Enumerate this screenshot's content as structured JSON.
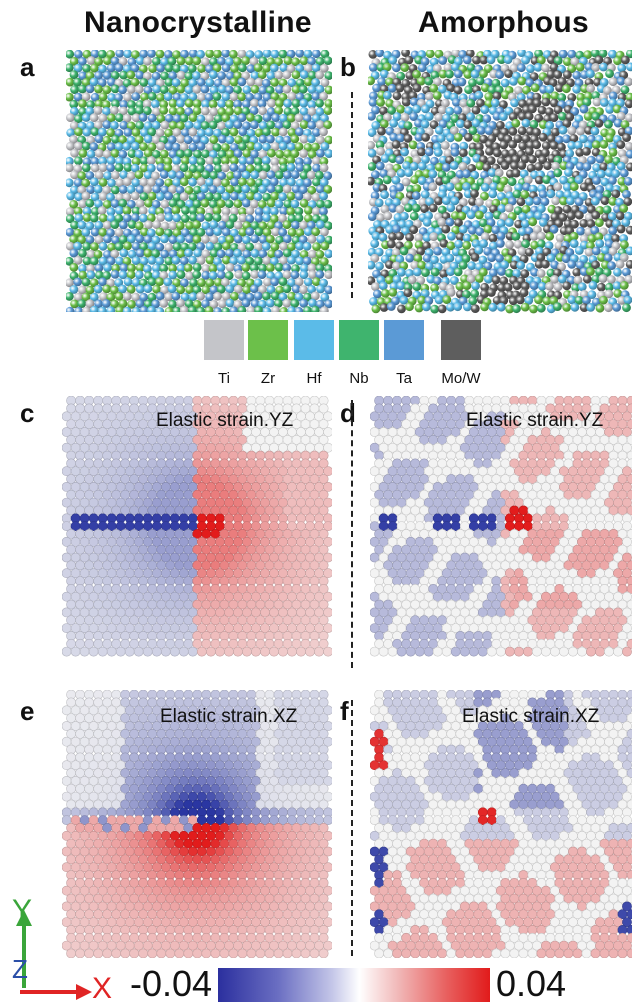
{
  "titles": {
    "left": "Nanocrystalline",
    "right": "Amorphous"
  },
  "panels": {
    "a": {
      "letter": "a"
    },
    "b": {
      "letter": "b"
    },
    "c": {
      "letter": "c",
      "label": "Elastic strain.YZ"
    },
    "d": {
      "letter": "d",
      "label": "Elastic strain.YZ"
    },
    "e": {
      "letter": "e",
      "label": "Elastic strain.XZ"
    },
    "f": {
      "letter": "f",
      "label": "Elastic strain.XZ"
    }
  },
  "legend": {
    "items": [
      {
        "label": "Ti",
        "color": "#c4c5c9"
      },
      {
        "label": "Zr",
        "color": "#6cc04a"
      },
      {
        "label": "Hf",
        "color": "#5bbbe8"
      },
      {
        "label": "Nb",
        "color": "#3fb46e"
      },
      {
        "label": "Ta",
        "color": "#5b9ad6"
      },
      {
        "label": "Mo/W",
        "color": "#5e5e5e"
      }
    ]
  },
  "colorbar": {
    "min_label": "-0.04",
    "max_label": "0.04",
    "min": -0.04,
    "max": 0.04
  },
  "axes": {
    "y": "Y",
    "x": "X",
    "z": "Z"
  },
  "colors": {
    "blue_strain": "#2a3aa0",
    "red_strain": "#e01818",
    "atom_white": "#ededed"
  }
}
